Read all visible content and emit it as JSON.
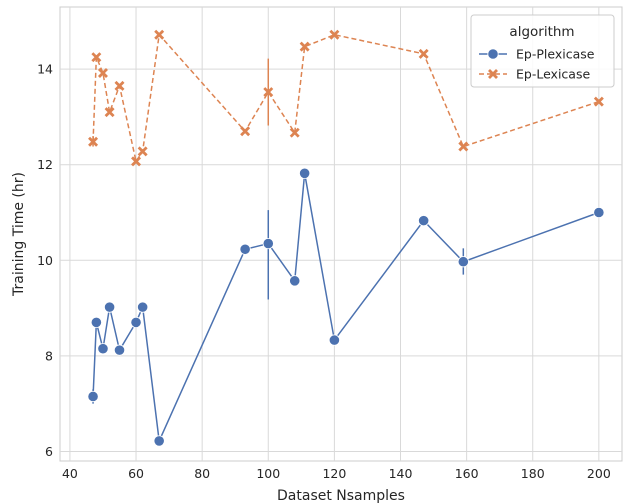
{
  "chart_data": {
    "type": "line",
    "xlabel": "Dataset Nsamples",
    "ylabel": "Training Time (hr)",
    "xlim": [
      37,
      207
    ],
    "ylim": [
      5.8,
      15.3
    ],
    "xticks": [
      40,
      60,
      80,
      100,
      120,
      140,
      160,
      180,
      200
    ],
    "yticks": [
      6,
      8,
      10,
      12,
      14
    ],
    "grid": true,
    "legend": {
      "title": "algorithm",
      "position": "top-right"
    },
    "series": [
      {
        "name": "Ep-Plexicase",
        "color": "#4c72b0",
        "marker": "circle",
        "linestyle": "solid",
        "points": [
          {
            "x": 47,
            "y": 7.15,
            "err": [
              7.0,
              7.3
            ]
          },
          {
            "x": 48,
            "y": 8.7
          },
          {
            "x": 50,
            "y": 8.15
          },
          {
            "x": 52,
            "y": 9.02
          },
          {
            "x": 55,
            "y": 8.12
          },
          {
            "x": 60,
            "y": 8.7
          },
          {
            "x": 62,
            "y": 9.02
          },
          {
            "x": 67,
            "y": 6.22
          },
          {
            "x": 93,
            "y": 10.23
          },
          {
            "x": 100,
            "y": 10.35,
            "err": [
              9.18,
              11.05
            ]
          },
          {
            "x": 108,
            "y": 9.57
          },
          {
            "x": 111,
            "y": 11.82
          },
          {
            "x": 120,
            "y": 8.33
          },
          {
            "x": 147,
            "y": 10.83
          },
          {
            "x": 159,
            "y": 9.97,
            "err": [
              9.7,
              10.25
            ]
          },
          {
            "x": 200,
            "y": 11.0
          }
        ]
      },
      {
        "name": "Ep-Lexicase",
        "color": "#dd8452",
        "marker": "x",
        "linestyle": "dashed",
        "points": [
          {
            "x": 47,
            "y": 12.48,
            "err": [
              12.38,
              12.6
            ]
          },
          {
            "x": 48,
            "y": 14.25
          },
          {
            "x": 50,
            "y": 13.92
          },
          {
            "x": 52,
            "y": 13.1
          },
          {
            "x": 55,
            "y": 13.65
          },
          {
            "x": 60,
            "y": 12.07
          },
          {
            "x": 62,
            "y": 12.28
          },
          {
            "x": 67,
            "y": 14.72
          },
          {
            "x": 93,
            "y": 12.7
          },
          {
            "x": 100,
            "y": 13.52,
            "err": [
              12.82,
              14.22
            ]
          },
          {
            "x": 108,
            "y": 12.67
          },
          {
            "x": 111,
            "y": 14.47
          },
          {
            "x": 120,
            "y": 14.72
          },
          {
            "x": 147,
            "y": 14.32
          },
          {
            "x": 159,
            "y": 12.38
          },
          {
            "x": 200,
            "y": 13.32
          }
        ]
      }
    ]
  }
}
